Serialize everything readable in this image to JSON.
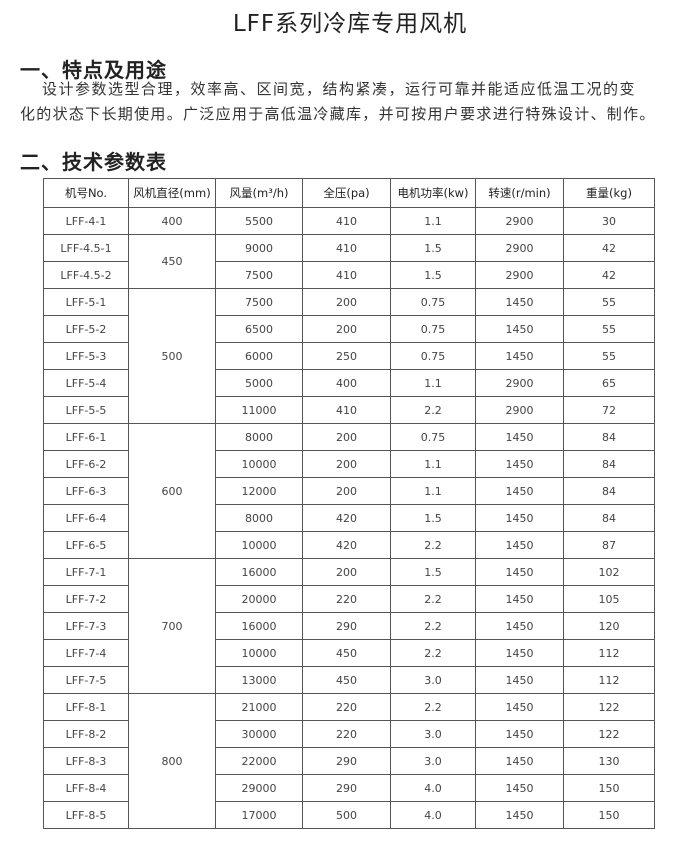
{
  "title": "LFF系列冷库专用风机",
  "section1": {
    "heading": "一、特点及用途",
    "line1": "设计参数选型合理，效率高、区间宽，结构紧凑，运行可靠并能适应低温工况的变",
    "line2": "化的状态下长期使用。广泛应用于高低温冷藏库，并可按用户要求进行特殊设计、制作。"
  },
  "section2": {
    "heading": "二、技术参数表"
  },
  "table": {
    "headers": [
      "机号No.",
      "风机直径(mm)",
      "风量(m³/h)",
      "全压(pa)",
      "电机功率(kw)",
      "转速(r/min)",
      "重量(kg)"
    ],
    "groups": [
      {
        "diameter": "400",
        "rows": [
          [
            "LFF-4-1",
            "5500",
            "410",
            "1.1",
            "2900",
            "30"
          ]
        ]
      },
      {
        "diameter": "450",
        "rows": [
          [
            "LFF-4.5-1",
            "9000",
            "410",
            "1.5",
            "2900",
            "42"
          ],
          [
            "LFF-4.5-2",
            "7500",
            "410",
            "1.5",
            "2900",
            "42"
          ]
        ]
      },
      {
        "diameter": "500",
        "rows": [
          [
            "LFF-5-1",
            "7500",
            "200",
            "0.75",
            "1450",
            "55"
          ],
          [
            "LFF-5-2",
            "6500",
            "200",
            "0.75",
            "1450",
            "55"
          ],
          [
            "LFF-5-3",
            "6000",
            "250",
            "0.75",
            "1450",
            "55"
          ],
          [
            "LFF-5-4",
            "5000",
            "400",
            "1.1",
            "2900",
            "65"
          ],
          [
            "LFF-5-5",
            "11000",
            "410",
            "2.2",
            "2900",
            "72"
          ]
        ]
      },
      {
        "diameter": "600",
        "rows": [
          [
            "LFF-6-1",
            "8000",
            "200",
            "0.75",
            "1450",
            "84"
          ],
          [
            "LFF-6-2",
            "10000",
            "200",
            "1.1",
            "1450",
            "84"
          ],
          [
            "LFF-6-3",
            "12000",
            "200",
            "1.1",
            "1450",
            "84"
          ],
          [
            "LFF-6-4",
            "8000",
            "420",
            "1.5",
            "1450",
            "84"
          ],
          [
            "LFF-6-5",
            "10000",
            "420",
            "2.2",
            "1450",
            "87"
          ]
        ]
      },
      {
        "diameter": "700",
        "rows": [
          [
            "LFF-7-1",
            "16000",
            "200",
            "1.5",
            "1450",
            "102"
          ],
          [
            "LFF-7-2",
            "20000",
            "220",
            "2.2",
            "1450",
            "105"
          ],
          [
            "LFF-7-3",
            "16000",
            "290",
            "2.2",
            "1450",
            "120"
          ],
          [
            "LFF-7-4",
            "10000",
            "450",
            "2.2",
            "1450",
            "112"
          ],
          [
            "LFF-7-5",
            "13000",
            "450",
            "3.0",
            "1450",
            "112"
          ]
        ]
      },
      {
        "diameter": "800",
        "rows": [
          [
            "LFF-8-1",
            "21000",
            "220",
            "2.2",
            "1450",
            "122"
          ],
          [
            "LFF-8-2",
            "30000",
            "220",
            "3.0",
            "1450",
            "122"
          ],
          [
            "LFF-8-3",
            "22000",
            "290",
            "3.0",
            "1450",
            "130"
          ],
          [
            "LFF-8-4",
            "29000",
            "290",
            "4.0",
            "1450",
            "150"
          ],
          [
            "LFF-8-5",
            "17000",
            "500",
            "4.0",
            "1450",
            "150"
          ]
        ]
      }
    ]
  }
}
